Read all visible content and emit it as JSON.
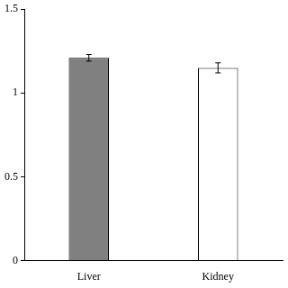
{
  "chart_data": {
    "type": "bar",
    "categories": [
      "Liver",
      "Kidney"
    ],
    "values": [
      1.21,
      1.15
    ],
    "errors": [
      0.02,
      0.03
    ],
    "colors": [
      "#808080",
      "#ffffff"
    ],
    "ylim": [
      0,
      1.5
    ],
    "yticks": [
      0,
      0.5,
      1,
      1.5
    ],
    "grid": false
  }
}
